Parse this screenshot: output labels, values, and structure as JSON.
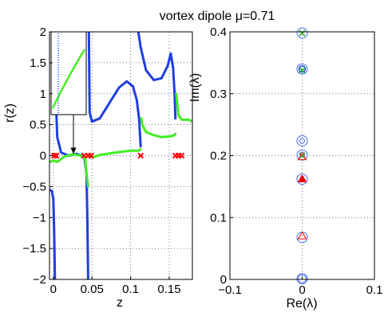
{
  "title": "vortex dipole μ=0.71",
  "chart_data": [
    {
      "type": "line",
      "xlabel": "z",
      "ylabel": "r(z)",
      "xlim": [
        -0.005,
        0.18
      ],
      "ylim": [
        -2,
        2
      ],
      "xticks": [
        0,
        0.05,
        0.1,
        0.15
      ],
      "xtick_labels": [
        "0",
        "0.05",
        "0.1",
        "0.15"
      ],
      "yticks": [
        -2,
        -1.5,
        -1,
        -0.5,
        0,
        0.5,
        1,
        1.5,
        2
      ],
      "ytick_labels": [
        "−2",
        "−1.5",
        "−1",
        "−0.5",
        "0",
        "0.5",
        "1",
        "1.5",
        "2"
      ],
      "grid": "dotted",
      "series": [
        {
          "color": "#1f3fe0",
          "segments": [
            [
              [
                -0.005,
                -0.55
              ],
              [
                -0.002,
                -0.57
              ],
              [
                0.0,
                -0.7
              ],
              [
                0.001,
                -1.2
              ],
              [
                0.002,
                -2.0
              ]
            ],
            [
              [
                0.002,
                2.0
              ],
              [
                0.003,
                1.0
              ],
              [
                0.005,
                0.3
              ],
              [
                0.01,
                0.05
              ],
              [
                0.02,
                0.0
              ],
              [
                0.03,
                0.03
              ],
              [
                0.036,
                0.0
              ],
              [
                0.04,
                -0.02
              ],
              [
                0.043,
                -0.3
              ],
              [
                0.044,
                -1.0
              ],
              [
                0.045,
                -2.0
              ]
            ],
            [
              [
                0.046,
                2.0
              ],
              [
                0.047,
                0.7
              ],
              [
                0.05,
                0.55
              ],
              [
                0.06,
                0.6
              ],
              [
                0.07,
                0.8
              ],
              [
                0.085,
                1.1
              ],
              [
                0.095,
                1.2
              ],
              [
                0.103,
                1.12
              ],
              [
                0.108,
                0.9
              ],
              [
                0.111,
                0.6
              ],
              [
                0.113,
                0.15
              ]
            ],
            [
              [
                0.11,
                2.0
              ],
              [
                0.113,
                1.75
              ],
              [
                0.12,
                1.38
              ],
              [
                0.13,
                1.22
              ],
              [
                0.14,
                1.25
              ],
              [
                0.148,
                1.45
              ],
              [
                0.152,
                1.65
              ],
              [
                0.155,
                1.42
              ],
              [
                0.157,
                1.0
              ],
              [
                0.158,
                0.6
              ]
            ]
          ]
        },
        {
          "color": "#44ee22",
          "segments": [
            [
              [
                -0.005,
                -0.1
              ],
              [
                0.0,
                -0.08
              ],
              [
                0.005,
                -0.1
              ],
              [
                0.015,
                -0.01
              ],
              [
                0.025,
                0.02
              ],
              [
                0.035,
                0.0
              ],
              [
                0.041,
                -0.05
              ],
              [
                0.043,
                -0.3
              ],
              [
                0.045,
                -0.5
              ]
            ],
            [
              [
                0.048,
                0.0
              ],
              [
                0.05,
                -0.03
              ],
              [
                0.06,
                0.01
              ],
              [
                0.08,
                0.05
              ],
              [
                0.1,
                0.08
              ],
              [
                0.11,
                0.08
              ],
              [
                0.113,
                0.1
              ]
            ],
            [
              [
                0.114,
                0.6
              ],
              [
                0.115,
                0.5
              ],
              [
                0.12,
                0.38
              ],
              [
                0.13,
                0.33
              ],
              [
                0.14,
                0.3
              ],
              [
                0.15,
                0.31
              ],
              [
                0.155,
                0.32
              ],
              [
                0.158,
                0.35
              ]
            ],
            [
              [
                0.159,
                1.0
              ],
              [
                0.162,
                0.65
              ],
              [
                0.166,
                0.58
              ],
              [
                0.175,
                0.58
              ],
              [
                0.18,
                0.55
              ]
            ]
          ]
        }
      ],
      "markers_x": [
        0.001,
        0.004,
        0.04,
        0.045,
        0.049,
        0.113,
        0.158,
        0.162,
        0.166
      ],
      "marker_color": "#ff0000",
      "inset": {
        "vline_x": 0.008,
        "arrow_to_x": 0.024,
        "arrow_to_y": 0.0
      }
    },
    {
      "type": "scatter",
      "xlabel": "Re(λ)",
      "ylabel": "Im(λ)",
      "xlim": [
        -0.1,
        0.1
      ],
      "ylim": [
        0,
        0.4
      ],
      "xticks": [
        -0.1,
        0,
        0.1
      ],
      "xtick_labels": [
        "−0.1",
        "0",
        "0.1"
      ],
      "yticks": [
        0,
        0.1,
        0.2,
        0.3,
        0.4
      ],
      "ytick_labels": [
        "0",
        "0.1",
        "0.2",
        "0.3",
        "0.4"
      ],
      "grid": "dotted",
      "blue_circles": [
        0.398,
        0.34,
        0.224,
        0.201,
        0.162,
        0.068,
        0.001
      ],
      "green_crosses": [
        0.398,
        0.338,
        0.2
      ],
      "red_triangles": [
        0.198,
        0.07
      ],
      "red_filled_triangle": 0.162,
      "blue_dots": [
        0.224,
        0.202
      ]
    }
  ]
}
